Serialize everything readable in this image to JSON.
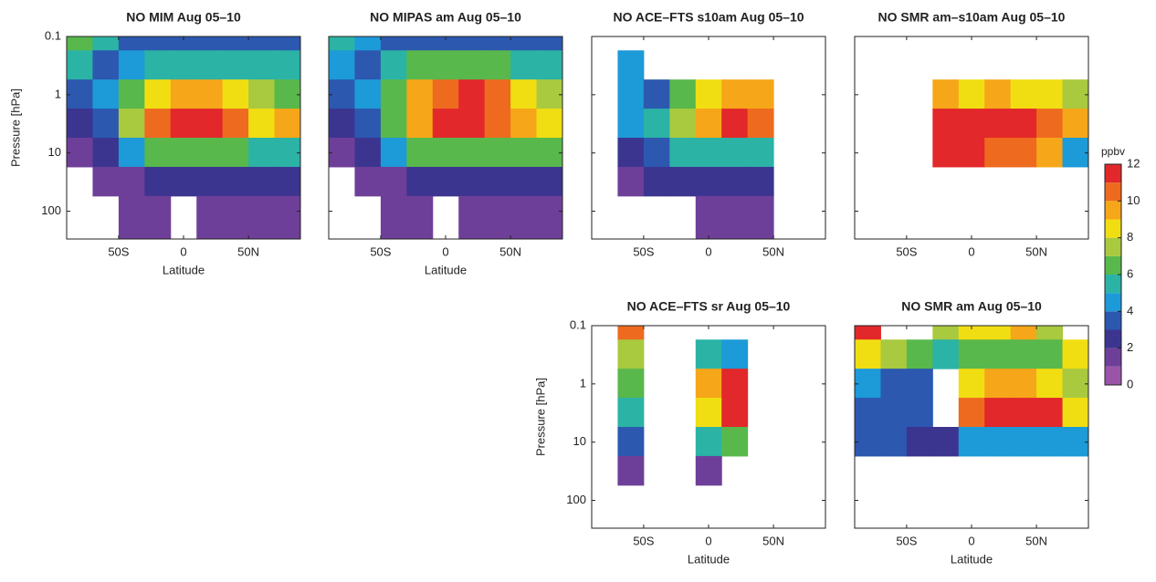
{
  "chart_data": [
    {
      "type": "contourf",
      "title": "NO MIM Aug 05–10",
      "xlabel": "Latitude",
      "ylabel": "Pressure [hPa]",
      "ytick_labels": true,
      "xlim": [
        -90,
        90
      ],
      "ylim": [
        300,
        0.1
      ],
      "yscale": "log",
      "xticks": [
        {
          "value": -50,
          "label": "50S"
        },
        0,
        {
          "value": 50,
          "label": "50N"
        }
      ],
      "yticks": [
        0.1,
        1,
        10,
        100
      ],
      "x": [
        -80,
        -60,
        -40,
        -20,
        0,
        20,
        40,
        60,
        80
      ],
      "y": [
        0.1,
        0.3,
        1,
        3,
        10,
        30,
        100
      ],
      "z": [
        [
          6,
          5,
          3,
          3,
          3,
          3,
          3,
          3,
          3
        ],
        [
          5,
          3,
          4,
          5,
          5,
          5,
          5,
          5,
          5
        ],
        [
          3,
          4,
          6,
          8,
          9,
          9,
          8,
          7,
          6
        ],
        [
          2,
          3,
          7,
          10,
          12,
          12,
          10,
          8,
          9
        ],
        [
          1,
          2,
          4,
          6,
          6,
          6,
          6,
          5,
          5
        ],
        [
          null,
          1,
          1,
          2,
          2,
          2,
          2,
          2,
          2
        ],
        [
          null,
          null,
          1,
          1,
          null,
          1,
          1,
          1,
          1
        ]
      ]
    },
    {
      "type": "contourf",
      "title": "NO MIPAS am Aug 05–10",
      "xlabel": "Latitude",
      "ytick_labels": false,
      "xlim": [
        -90,
        90
      ],
      "ylim": [
        300,
        0.1
      ],
      "yscale": "log",
      "xticks": [
        {
          "value": -50,
          "label": "50S"
        },
        0,
        {
          "value": 50,
          "label": "50N"
        }
      ],
      "yticks": [
        0.1,
        1,
        10,
        100
      ],
      "x": [
        -80,
        -60,
        -40,
        -20,
        0,
        20,
        40,
        60,
        80
      ],
      "y": [
        0.1,
        0.3,
        1,
        3,
        10,
        30,
        100
      ],
      "z": [
        [
          5,
          4,
          3,
          3,
          3,
          3,
          3,
          3,
          3
        ],
        [
          4,
          3,
          5,
          6,
          6,
          6,
          6,
          5,
          5
        ],
        [
          3,
          4,
          6,
          9,
          10,
          11,
          10,
          8,
          7
        ],
        [
          2,
          3,
          6,
          9,
          12,
          12,
          10,
          9,
          8
        ],
        [
          1,
          2,
          4,
          6,
          6,
          6,
          6,
          6,
          6
        ],
        [
          null,
          1,
          1,
          2,
          2,
          2,
          2,
          2,
          2
        ],
        [
          null,
          null,
          1,
          1,
          null,
          1,
          1,
          1,
          1
        ]
      ]
    },
    {
      "type": "contourf",
      "title": "NO ACE–FTS s10am Aug 05–10",
      "ytick_labels": false,
      "xlim": [
        -90,
        90
      ],
      "ylim": [
        300,
        0.1
      ],
      "yscale": "log",
      "xticks": [
        {
          "value": -50,
          "label": "50S"
        },
        0,
        {
          "value": 50,
          "label": "50N"
        }
      ],
      "yticks": [
        0.1,
        1,
        10,
        100
      ],
      "x": [
        -80,
        -60,
        -40,
        -20,
        0,
        20,
        40,
        60,
        80
      ],
      "y": [
        0.1,
        0.3,
        1,
        3,
        10,
        30,
        100
      ],
      "z": [
        [
          null,
          null,
          null,
          null,
          null,
          null,
          null,
          null,
          null
        ],
        [
          null,
          4,
          null,
          null,
          null,
          null,
          null,
          null,
          null
        ],
        [
          null,
          4,
          3,
          6,
          8,
          9,
          9,
          null,
          null
        ],
        [
          null,
          4,
          5,
          7,
          9,
          11,
          10,
          null,
          null
        ],
        [
          null,
          2,
          3,
          5,
          5,
          5,
          5,
          null,
          null
        ],
        [
          null,
          1,
          2,
          2,
          2,
          2,
          2,
          null,
          null
        ],
        [
          null,
          null,
          null,
          null,
          1,
          1,
          1,
          null,
          null
        ]
      ]
    },
    {
      "type": "contourf",
      "title": "NO SMR am–s10am Aug 05–10",
      "ytick_labels": false,
      "xlim": [
        -90,
        90
      ],
      "ylim": [
        300,
        0.1
      ],
      "yscale": "log",
      "xticks": [
        {
          "value": -50,
          "label": "50S"
        },
        0,
        {
          "value": 50,
          "label": "50N"
        }
      ],
      "yticks": [
        0.1,
        1,
        10,
        100
      ],
      "x": [
        -80,
        -60,
        -40,
        -20,
        0,
        20,
        40,
        60,
        80
      ],
      "y": [
        0.1,
        0.3,
        1,
        3,
        10,
        30,
        100
      ],
      "z": [
        [
          null,
          null,
          null,
          null,
          null,
          null,
          null,
          null,
          null
        ],
        [
          null,
          null,
          null,
          null,
          null,
          null,
          null,
          null,
          null
        ],
        [
          null,
          null,
          null,
          9,
          8,
          9,
          8,
          8,
          7
        ],
        [
          null,
          null,
          null,
          12,
          12,
          12,
          11,
          10,
          9
        ],
        [
          null,
          null,
          null,
          11,
          11,
          10,
          10,
          9,
          4
        ],
        [
          null,
          null,
          null,
          null,
          null,
          null,
          null,
          null,
          null
        ],
        [
          null,
          null,
          null,
          null,
          null,
          null,
          null,
          null,
          null
        ]
      ]
    },
    {
      "type": "contourf",
      "title": "NO ACE–FTS sr Aug 05–10",
      "xlabel": "Latitude",
      "ylabel": "Pressure [hPa]",
      "ytick_labels": true,
      "xlim": [
        -90,
        90
      ],
      "ylim": [
        300,
        0.1
      ],
      "yscale": "log",
      "xticks": [
        {
          "value": -50,
          "label": "50S"
        },
        0,
        {
          "value": 50,
          "label": "50N"
        }
      ],
      "yticks": [
        0.1,
        1,
        10,
        100
      ],
      "x": [
        -80,
        -60,
        -40,
        -20,
        0,
        20,
        40,
        60,
        80
      ],
      "y": [
        0.1,
        0.3,
        1,
        3,
        10,
        30,
        100
      ],
      "z": [
        [
          null,
          10,
          null,
          null,
          null,
          null,
          null,
          null,
          null
        ],
        [
          null,
          7,
          null,
          null,
          5,
          4,
          null,
          null,
          null
        ],
        [
          null,
          6,
          null,
          null,
          9,
          11,
          null,
          null,
          null
        ],
        [
          null,
          5,
          null,
          null,
          8,
          11,
          null,
          null,
          null
        ],
        [
          null,
          3,
          null,
          null,
          5,
          6,
          null,
          null,
          null
        ],
        [
          null,
          1,
          null,
          null,
          1,
          null,
          null,
          null,
          null
        ],
        [
          null,
          null,
          null,
          null,
          null,
          null,
          null,
          null,
          null
        ]
      ]
    },
    {
      "type": "contourf",
      "title": "NO SMR am Aug 05–10",
      "xlabel": "Latitude",
      "ytick_labels": false,
      "xlim": [
        -90,
        90
      ],
      "ylim": [
        300,
        0.1
      ],
      "yscale": "log",
      "xticks": [
        {
          "value": -50,
          "label": "50S"
        },
        0,
        {
          "value": 50,
          "label": "50N"
        }
      ],
      "yticks": [
        0.1,
        1,
        10,
        100
      ],
      "x": [
        -80,
        -60,
        -40,
        -20,
        0,
        20,
        40,
        60,
        80
      ],
      "y": [
        0.1,
        0.3,
        1,
        3,
        10,
        30,
        100
      ],
      "z": [
        [
          11,
          null,
          null,
          7,
          8,
          8,
          9,
          7,
          null
        ],
        [
          8,
          7,
          6,
          5,
          6,
          6,
          6,
          6,
          8
        ],
        [
          4,
          3,
          3,
          null,
          8,
          9,
          9,
          8,
          7
        ],
        [
          3,
          3,
          3,
          null,
          10,
          12,
          12,
          11,
          8
        ],
        [
          3,
          3,
          2,
          2,
          4,
          4,
          4,
          4,
          4
        ],
        [
          null,
          null,
          null,
          null,
          null,
          null,
          null,
          null,
          null
        ],
        [
          null,
          null,
          null,
          null,
          null,
          null,
          null,
          null,
          null
        ]
      ]
    }
  ],
  "colorbar": {
    "label": "ppbv",
    "levels": [
      0,
      1,
      2,
      3,
      4,
      5,
      6,
      7,
      8,
      9,
      10,
      11,
      12
    ],
    "colors": [
      "#9b55a8",
      "#6e3f98",
      "#3b3590",
      "#2c58b0",
      "#1d9ad8",
      "#2bb3a6",
      "#58b84c",
      "#a9c93e",
      "#f1de12",
      "#f6a619",
      "#ee6a1f",
      "#e2282a"
    ],
    "ticks": [
      0,
      2,
      4,
      6,
      8,
      10,
      12
    ]
  }
}
